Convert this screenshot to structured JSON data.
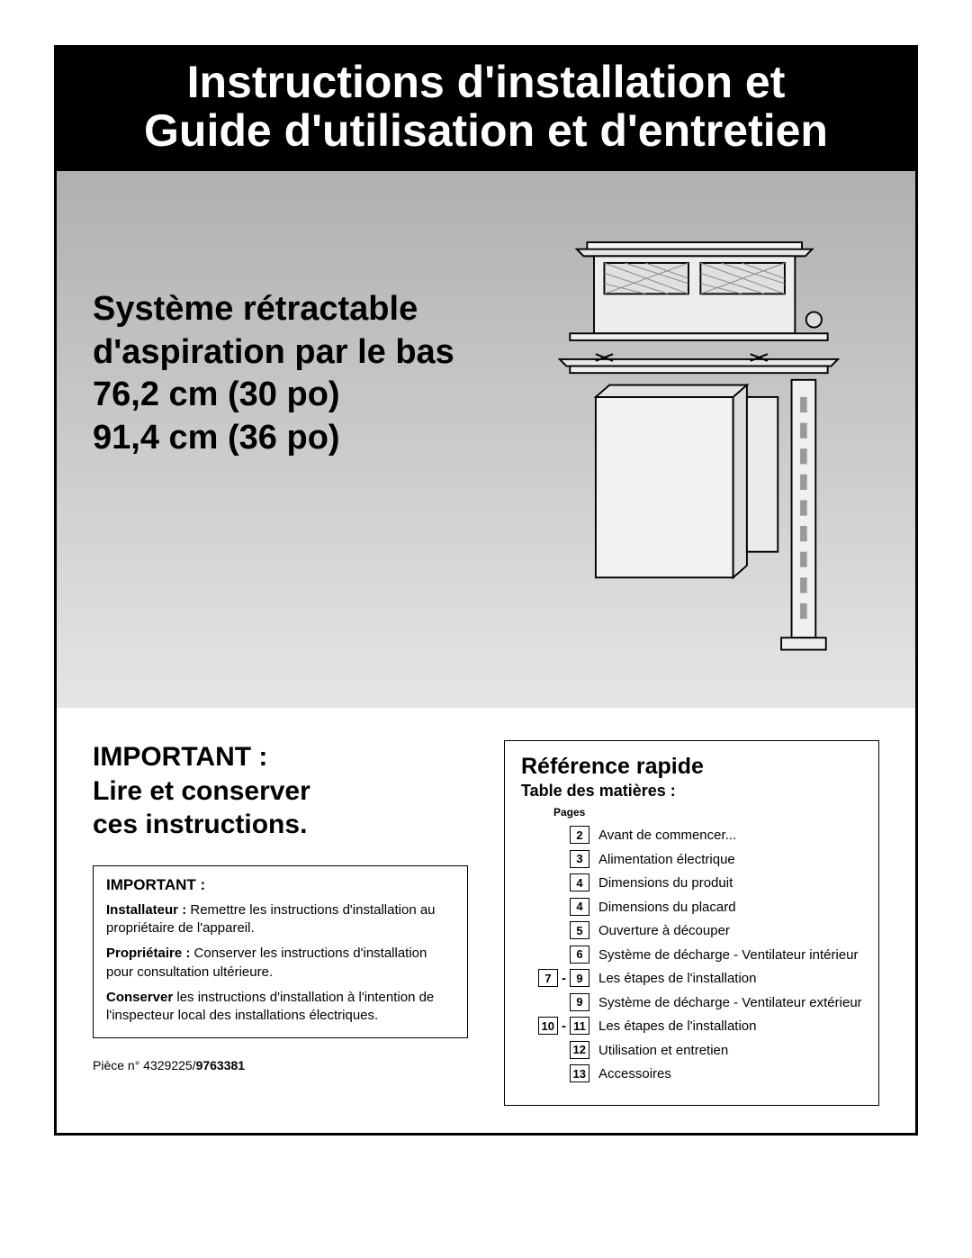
{
  "title": {
    "line1": "Instructions d'installation et",
    "line2": "Guide d'utilisation et d'entretien"
  },
  "hero": {
    "line1": "Système rétractable",
    "line2": "d'aspiration par le bas",
    "line3": "76,2 cm (30 po)",
    "line4": "91,4 cm (36 po)"
  },
  "important": {
    "heading_line1": "IMPORTANT :",
    "heading_line2": "Lire et conserver",
    "heading_line3": "ces instructions.",
    "box_title": "IMPORTANT :",
    "installer_bold": "Installateur :",
    "installer_text": " Remettre les instructions d'installation au propriétaire de l'appareil.",
    "owner_bold": "Propriétaire :",
    "owner_text": " Conserver les instructions d'installation pour consultation ultérieure.",
    "keep_bold": "Conserver",
    "keep_text": " les instructions d'installation à l'intention de l'inspecteur local des installations électriques."
  },
  "part": {
    "prefix": "Pièce n° 4329225/",
    "bold": "9763381"
  },
  "reference": {
    "title": "Référence rapide",
    "subtitle": "Table des matières :",
    "pages_label": "Pages",
    "items": [
      {
        "pages": [
          "2"
        ],
        "text": "Avant de commencer..."
      },
      {
        "pages": [
          "3"
        ],
        "text": "Alimentation électrique"
      },
      {
        "pages": [
          "4"
        ],
        "text": "Dimensions du produit"
      },
      {
        "pages": [
          "4"
        ],
        "text": "Dimensions du placard"
      },
      {
        "pages": [
          "5"
        ],
        "text": "Ouverture à découper"
      },
      {
        "pages": [
          "6"
        ],
        "text": "Système de décharge - Ventilateur intérieur"
      },
      {
        "pages": [
          "7",
          "9"
        ],
        "text": "Les étapes de l'installation"
      },
      {
        "pages": [
          "9"
        ],
        "text": "Système de décharge - Ventilateur extérieur"
      },
      {
        "pages": [
          "10",
          "11"
        ],
        "text": "Les étapes de l'installation"
      },
      {
        "pages": [
          "12"
        ],
        "text": "Utilisation et entretien"
      },
      {
        "pages": [
          "13"
        ],
        "text": "Accessoires"
      }
    ]
  },
  "colors": {
    "banner_bg": "#000000",
    "banner_text": "#ffffff",
    "hero_grad_top": "#b0b0b0",
    "hero_grad_bottom": "#e5e5e5",
    "border": "#000000",
    "text": "#000000"
  }
}
